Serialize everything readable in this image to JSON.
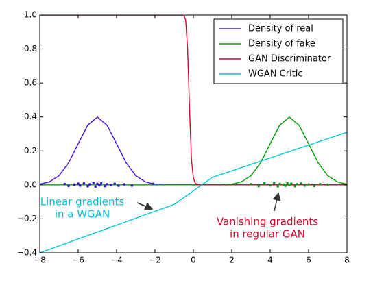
{
  "chart_data": {
    "type": "line",
    "xlim": [
      -8,
      8
    ],
    "ylim": [
      -0.4,
      1.0
    ],
    "xticks": [
      {
        "value": -8,
        "label": "−8"
      },
      {
        "value": -6,
        "label": "−6"
      },
      {
        "value": -4,
        "label": "−4"
      },
      {
        "value": -2,
        "label": "−2"
      },
      0,
      2,
      4,
      6,
      8
    ],
    "yticks": [
      {
        "value": -0.4,
        "label": "−0.4"
      },
      {
        "value": -0.2,
        "label": "−0.2"
      },
      {
        "value": 0,
        "label": "0.0"
      },
      {
        "value": 0.2,
        "label": "0.2"
      },
      {
        "value": 0.4,
        "label": "0.4"
      },
      {
        "value": 0.6,
        "label": "0.6"
      },
      {
        "value": 0.8,
        "label": "0.8"
      },
      {
        "value": 1.0,
        "label": "1.0"
      }
    ],
    "legend": "upper right",
    "series": [
      {
        "name": "Density of real",
        "color": "#4a10e0",
        "x": [
          -8,
          -7.5,
          -7,
          -6.5,
          -6,
          -5.5,
          -5,
          -4.5,
          -4,
          -3.5,
          -3,
          -2.5,
          -2,
          -1.5,
          -1,
          -0.5,
          0,
          0.5,
          1,
          1.5,
          2,
          2.5,
          3,
          3.5,
          4,
          4.5,
          5,
          5.5,
          6,
          6.5,
          7,
          7.5,
          8
        ],
        "values": [
          0.0044,
          0.0175,
          0.054,
          0.13,
          0.242,
          0.352,
          0.399,
          0.352,
          0.242,
          0.13,
          0.054,
          0.0175,
          0.0044,
          0.0009,
          0.0001,
          0,
          0,
          0,
          0,
          0,
          0,
          0,
          0,
          0,
          0,
          0,
          0,
          0,
          0,
          0,
          0,
          0,
          0
        ]
      },
      {
        "name": "Density of fake",
        "color": "#00a000",
        "x": [
          -8,
          -7.5,
          -7,
          -6.5,
          -6,
          -5.5,
          -5,
          -4.5,
          -4,
          -3.5,
          -3,
          -2.5,
          -2,
          -1.5,
          -1,
          -0.5,
          0,
          0.5,
          1,
          1.5,
          2,
          2.5,
          3,
          3.5,
          4,
          4.5,
          5,
          5.5,
          6,
          6.5,
          7,
          7.5,
          8
        ],
        "values": [
          0,
          0,
          0,
          0,
          0,
          0,
          0,
          0,
          0,
          0,
          0,
          0,
          0,
          0,
          0,
          0,
          0,
          0,
          0.0001,
          0.0009,
          0.0044,
          0.0175,
          0.054,
          0.13,
          0.242,
          0.352,
          0.399,
          0.352,
          0.242,
          0.13,
          0.054,
          0.0175,
          0.0044
        ]
      },
      {
        "name": "GAN Discriminator",
        "color": "#e0002a",
        "x": [
          -8,
          -0.5,
          -0.4,
          -0.3,
          -0.2,
          -0.1,
          0,
          0.1,
          0.2,
          8
        ],
        "values": [
          1,
          1,
          0.97,
          0.8,
          0.45,
          0.15,
          0.04,
          0.01,
          0,
          0
        ]
      },
      {
        "name": "WGAN Critic",
        "color": "#00c8d8",
        "x": [
          -8,
          -1,
          1,
          8
        ],
        "values": [
          -0.4,
          -0.115,
          0.045,
          0.31
        ]
      },
      {
        "type": "scatter",
        "color": "#3a10d0",
        "x": [
          -6.7,
          -6.5,
          -6.2,
          -6.0,
          -5.9,
          -5.7,
          -5.5,
          -5.4,
          -5.2,
          -5.1,
          -5.0,
          -4.9,
          -4.8,
          -4.6,
          -4.5,
          -4.3,
          -4.1,
          -3.9,
          -3.6,
          -3.2,
          -2.1
        ],
        "values": [
          0.005,
          -0.006,
          0.002,
          0.008,
          -0.004,
          0.01,
          -0.008,
          0.003,
          0.012,
          -0.01,
          0.006,
          -0.003,
          0.009,
          -0.007,
          0.004,
          -0.002,
          0.007,
          -0.005,
          0.003,
          -0.004,
          0.006
        ]
      },
      {
        "type": "scatter",
        "color": "#109a10",
        "x": [
          3.0,
          3.4,
          3.7,
          4.0,
          4.2,
          4.4,
          4.5,
          4.7,
          4.8,
          4.9,
          5.0,
          5.1,
          5.3,
          5.4,
          5.6,
          5.8,
          6.0,
          6.3,
          6.6,
          7.0
        ],
        "values": [
          0.004,
          -0.007,
          0.009,
          -0.003,
          0.011,
          -0.009,
          0.006,
          0.002,
          -0.005,
          0.01,
          -0.002,
          0.007,
          -0.008,
          0.004,
          0.008,
          -0.004,
          0.003,
          -0.006,
          0.005,
          0.001
        ]
      }
    ],
    "annotations": [
      {
        "lines": [
          "Linear gradients",
          "in a WGAN"
        ],
        "color": "#00c0d8"
      },
      {
        "lines": [
          "Vanishing gradients",
          "in regular GAN"
        ],
        "color": "#e0002a"
      }
    ]
  }
}
